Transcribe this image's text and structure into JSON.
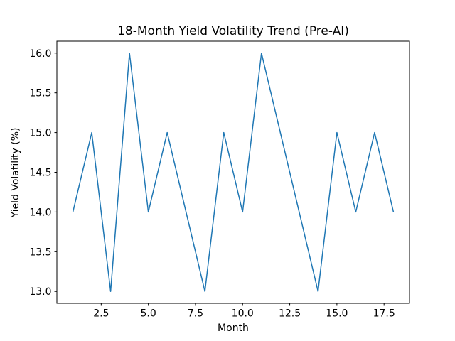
{
  "chart_data": {
    "type": "line",
    "title": "18-Month Yield Volatility Trend (Pre-AI)",
    "xlabel": "Month",
    "ylabel": "Yield Volatility (%)",
    "x": [
      1,
      2,
      3,
      4,
      5,
      6,
      7,
      8,
      9,
      10,
      11,
      12,
      13,
      14,
      15,
      16,
      17,
      18
    ],
    "values": [
      14.0,
      15.0,
      13.0,
      16.0,
      14.0,
      15.0,
      14.0,
      13.0,
      15.0,
      14.0,
      16.0,
      15.0,
      14.0,
      13.0,
      15.0,
      14.0,
      15.0,
      14.0
    ],
    "series_name": "Yield Volatility",
    "xlim": [
      0.15,
      18.85
    ],
    "ylim": [
      12.85,
      16.15
    ],
    "xticks": [
      2.5,
      5.0,
      7.5,
      10.0,
      12.5,
      15.0,
      17.5
    ],
    "xtick_labels": [
      "2.5",
      "5.0",
      "7.5",
      "10.0",
      "12.5",
      "15.0",
      "17.5"
    ],
    "yticks": [
      13.0,
      13.5,
      14.0,
      14.5,
      15.0,
      15.5,
      16.0
    ],
    "ytick_labels": [
      "13.0",
      "13.5",
      "14.0",
      "14.5",
      "15.0",
      "15.5",
      "16.0"
    ],
    "line_color": "#1f77b4",
    "axes_color": "#000000",
    "background_color": "#ffffff",
    "grid": false,
    "legend_position": "none"
  }
}
